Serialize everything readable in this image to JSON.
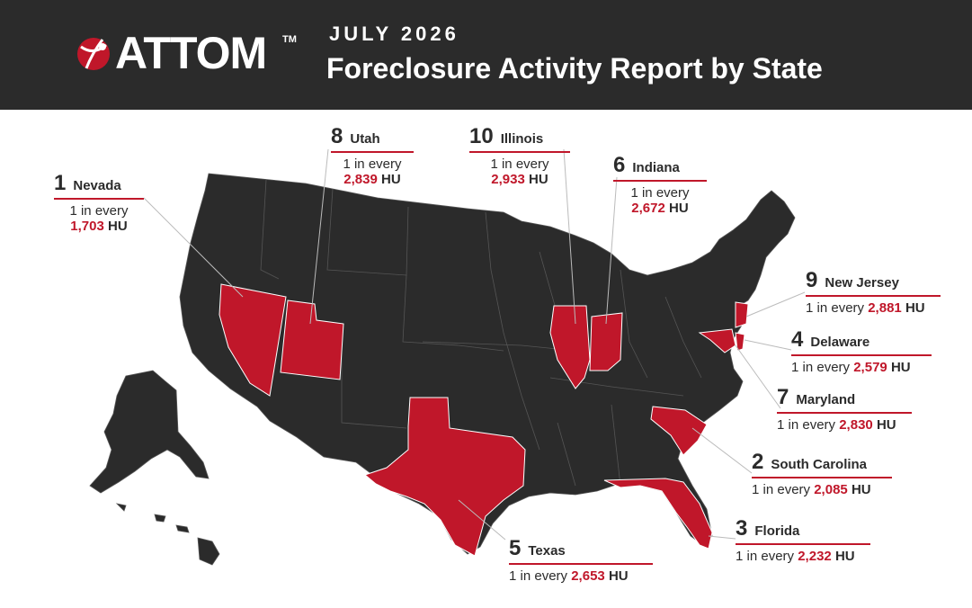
{
  "header": {
    "logo_text": "ATTOM",
    "logo_tm": "TM",
    "date": "JULY 2026",
    "title": "Foreclosure Activity Report by State"
  },
  "colors": {
    "highlight": "#c0172a",
    "base_state": "#2b2b2b",
    "header_bg": "#2b2b2b"
  },
  "map_data": {
    "metric": "1 in every",
    "unit": "HU",
    "states": [
      {
        "rank": "1",
        "state": "Nevada",
        "value": "1,703"
      },
      {
        "rank": "2",
        "state": "South Carolina",
        "value": "2,085"
      },
      {
        "rank": "3",
        "state": "Florida",
        "value": "2,232"
      },
      {
        "rank": "4",
        "state": "Delaware",
        "value": "2,579"
      },
      {
        "rank": "5",
        "state": "Texas",
        "value": "2,653"
      },
      {
        "rank": "6",
        "state": "Indiana",
        "value": "2,672"
      },
      {
        "rank": "7",
        "state": "Maryland",
        "value": "2,830"
      },
      {
        "rank": "8",
        "state": "Utah",
        "value": "2,839"
      },
      {
        "rank": "9",
        "state": "New Jersey",
        "value": "2,881"
      },
      {
        "rank": "10",
        "state": "Illinois",
        "value": "2,933"
      }
    ]
  }
}
